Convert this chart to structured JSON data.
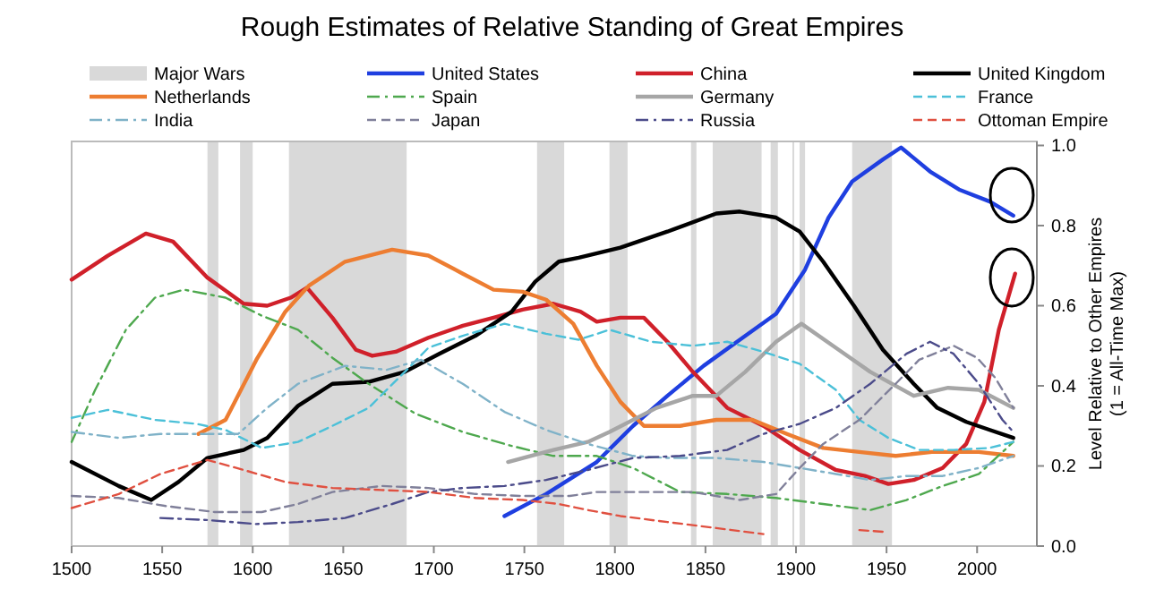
{
  "chart_data": {
    "type": "line",
    "title": "Rough Estimates of Relative Standing of Great Empires",
    "ylabel": "Level Relative to Other Empires\n(1 = All-Time Max)",
    "xlim": [
      1500,
      2033
    ],
    "ylim": [
      0,
      1.01
    ],
    "xticks": [
      1500,
      1550,
      1600,
      1650,
      1700,
      1750,
      1800,
      1850,
      1900,
      1950,
      2000
    ],
    "yticks": [
      {
        "value": 0,
        "label": "0.0"
      },
      {
        "value": 0.2,
        "label": "0.2"
      },
      {
        "value": 0.4,
        "label": "0.4"
      },
      {
        "value": 0.6,
        "label": "0.6"
      },
      {
        "value": 0.8,
        "label": "0.8"
      },
      {
        "value": 1,
        "label": "1.0"
      }
    ],
    "legend": "top",
    "grid": false,
    "marker": "none",
    "bands": [
      {
        "axis": "x",
        "from": 1620,
        "to": 1685,
        "label": "Major Wars",
        "color": "#d9d9d9"
      },
      {
        "axis": "x",
        "from": 1575,
        "to": 1581,
        "color": "#d9d9d9"
      },
      {
        "axis": "x",
        "from": 1593,
        "to": 1600,
        "color": "#d9d9d9"
      },
      {
        "axis": "x",
        "from": 1757,
        "to": 1772,
        "color": "#d9d9d9"
      },
      {
        "axis": "x",
        "from": 1797,
        "to": 1807,
        "color": "#d9d9d9"
      },
      {
        "axis": "x",
        "from": 1842,
        "to": 1845,
        "color": "#d9d9d9"
      },
      {
        "axis": "x",
        "from": 1854,
        "to": 1881,
        "color": "#d9d9d9"
      },
      {
        "axis": "x",
        "from": 1886,
        "to": 1890,
        "color": "#d9d9d9"
      },
      {
        "axis": "x",
        "from": 1898,
        "to": 1899,
        "color": "#d9d9d9"
      },
      {
        "axis": "x",
        "from": 1902,
        "to": 1905,
        "color": "#d9d9d9"
      },
      {
        "axis": "x",
        "from": 1931,
        "to": 1953,
        "color": "#d9d9d9"
      }
    ],
    "series": [
      {
        "name": "United States",
        "color": "#1f3fe0",
        "line_style": "solid",
        "x": [
          1739,
          1762,
          1790,
          1810,
          1829,
          1849,
          1869,
          1889,
          1905,
          1918,
          1931,
          1948,
          1958,
          1974,
          1990,
          2007,
          2020
        ],
        "values": [
          0.075,
          0.13,
          0.21,
          0.3,
          0.375,
          0.45,
          0.515,
          0.58,
          0.69,
          0.82,
          0.91,
          0.965,
          0.995,
          0.935,
          0.89,
          0.86,
          0.825
        ]
      },
      {
        "name": "China",
        "color": "#d0202a",
        "line_style": "solid",
        "x": [
          1500,
          1520,
          1541,
          1556,
          1575,
          1595,
          1608,
          1621,
          1630,
          1644,
          1657,
          1666,
          1679,
          1697,
          1716,
          1733,
          1749,
          1766,
          1781,
          1790,
          1803,
          1816,
          1829,
          1843,
          1862,
          1882,
          1902,
          1922,
          1938,
          1951,
          1965,
          1981,
          1994,
          2004,
          2012,
          2021
        ],
        "values": [
          0.665,
          0.725,
          0.78,
          0.76,
          0.67,
          0.605,
          0.6,
          0.62,
          0.645,
          0.57,
          0.49,
          0.475,
          0.485,
          0.52,
          0.55,
          0.57,
          0.59,
          0.605,
          0.585,
          0.56,
          0.57,
          0.57,
          0.51,
          0.435,
          0.345,
          0.3,
          0.24,
          0.19,
          0.175,
          0.155,
          0.165,
          0.195,
          0.255,
          0.36,
          0.54,
          0.68
        ]
      },
      {
        "name": "United Kingdom",
        "color": "#000000",
        "line_style": "solid",
        "x": [
          1500,
          1526,
          1544,
          1559,
          1575,
          1595,
          1608,
          1625,
          1644,
          1664,
          1684,
          1703,
          1723,
          1743,
          1756,
          1769,
          1780,
          1803,
          1829,
          1856,
          1869,
          1889,
          1902,
          1915,
          1932,
          1948,
          1965,
          1978,
          1994,
          2007,
          2020
        ],
        "values": [
          0.21,
          0.15,
          0.115,
          0.16,
          0.22,
          0.24,
          0.27,
          0.35,
          0.405,
          0.41,
          0.435,
          0.48,
          0.525,
          0.585,
          0.66,
          0.71,
          0.72,
          0.745,
          0.785,
          0.83,
          0.835,
          0.82,
          0.785,
          0.71,
          0.6,
          0.49,
          0.405,
          0.345,
          0.31,
          0.29,
          0.27
        ]
      },
      {
        "name": "Netherlands",
        "color": "#ed7d31",
        "line_style": "solid",
        "x": [
          1570,
          1585,
          1602,
          1618,
          1631,
          1651,
          1677,
          1697,
          1716,
          1733,
          1749,
          1762,
          1777,
          1790,
          1803,
          1816,
          1836,
          1856,
          1876,
          1895,
          1915,
          1935,
          1955,
          1975,
          2001,
          2020
        ],
        "values": [
          0.28,
          0.315,
          0.465,
          0.585,
          0.65,
          0.71,
          0.74,
          0.725,
          0.68,
          0.64,
          0.635,
          0.615,
          0.555,
          0.45,
          0.36,
          0.3,
          0.3,
          0.315,
          0.315,
          0.28,
          0.245,
          0.235,
          0.225,
          0.235,
          0.235,
          0.225
        ]
      },
      {
        "name": "Spain",
        "color": "#4ea84e",
        "line_style": "dashdot",
        "x": [
          1500,
          1513,
          1530,
          1546,
          1562,
          1585,
          1605,
          1625,
          1644,
          1664,
          1690,
          1716,
          1743,
          1766,
          1790,
          1810,
          1836,
          1862,
          1889,
          1915,
          1941,
          1961,
          1981,
          2001,
          2020
        ],
        "values": [
          0.26,
          0.39,
          0.54,
          0.62,
          0.64,
          0.62,
          0.575,
          0.54,
          0.47,
          0.405,
          0.33,
          0.285,
          0.25,
          0.225,
          0.225,
          0.195,
          0.135,
          0.13,
          0.12,
          0.105,
          0.09,
          0.115,
          0.15,
          0.18,
          0.26
        ]
      },
      {
        "name": "Germany",
        "color": "#a6a6a6",
        "line_style": "solid",
        "x": [
          1741,
          1766,
          1785,
          1797,
          1823,
          1843,
          1856,
          1872,
          1889,
          1903,
          1922,
          1941,
          1965,
          1984,
          2001,
          2020
        ],
        "values": [
          0.21,
          0.24,
          0.26,
          0.285,
          0.345,
          0.375,
          0.375,
          0.435,
          0.51,
          0.555,
          0.495,
          0.435,
          0.375,
          0.395,
          0.39,
          0.345
        ]
      },
      {
        "name": "France",
        "color": "#4bc0d8",
        "line_style": "dashed",
        "x": [
          1500,
          1520,
          1546,
          1569,
          1585,
          1605,
          1625,
          1644,
          1664,
          1684,
          1697,
          1716,
          1739,
          1762,
          1780,
          1797,
          1820,
          1843,
          1862,
          1882,
          1902,
          1922,
          1935,
          1951,
          1968,
          1987,
          2007,
          2020
        ],
        "values": [
          0.32,
          0.34,
          0.315,
          0.305,
          0.29,
          0.245,
          0.26,
          0.3,
          0.345,
          0.435,
          0.495,
          0.525,
          0.555,
          0.53,
          0.515,
          0.54,
          0.51,
          0.5,
          0.51,
          0.485,
          0.455,
          0.39,
          0.315,
          0.27,
          0.24,
          0.24,
          0.245,
          0.26
        ]
      },
      {
        "name": "India",
        "color": "#7fb2c8",
        "line_style": "dashdot",
        "x": [
          1500,
          1526,
          1549,
          1569,
          1592,
          1608,
          1625,
          1651,
          1674,
          1693,
          1716,
          1739,
          1762,
          1785,
          1810,
          1829,
          1856,
          1882,
          1902,
          1922,
          1941,
          1961,
          1981,
          2001,
          2020
        ],
        "values": [
          0.285,
          0.27,
          0.28,
          0.28,
          0.28,
          0.345,
          0.405,
          0.45,
          0.44,
          0.465,
          0.405,
          0.335,
          0.29,
          0.255,
          0.225,
          0.22,
          0.22,
          0.21,
          0.195,
          0.18,
          0.165,
          0.175,
          0.175,
          0.195,
          0.225
        ]
      },
      {
        "name": "Japan",
        "color": "#80809a",
        "line_style": "dashed",
        "x": [
          1500,
          1526,
          1552,
          1579,
          1605,
          1625,
          1644,
          1671,
          1697,
          1723,
          1749,
          1775,
          1790,
          1816,
          1843,
          1869,
          1889,
          1902,
          1915,
          1935,
          1955,
          1968,
          1987,
          2000,
          2010,
          2020
        ],
        "values": [
          0.125,
          0.12,
          0.1,
          0.085,
          0.085,
          0.105,
          0.135,
          0.15,
          0.145,
          0.13,
          0.125,
          0.125,
          0.135,
          0.135,
          0.135,
          0.115,
          0.13,
          0.195,
          0.255,
          0.315,
          0.405,
          0.465,
          0.5,
          0.47,
          0.42,
          0.345
        ]
      },
      {
        "name": "Russia",
        "color": "#4b4b8a",
        "line_style": "dashdot",
        "x": [
          1549,
          1575,
          1602,
          1625,
          1651,
          1677,
          1697,
          1716,
          1739,
          1762,
          1785,
          1810,
          1836,
          1862,
          1882,
          1902,
          1922,
          1941,
          1961,
          1974,
          1987,
          2001,
          2014,
          2020
        ],
        "values": [
          0.07,
          0.065,
          0.055,
          0.06,
          0.07,
          0.105,
          0.135,
          0.145,
          0.15,
          0.165,
          0.19,
          0.22,
          0.225,
          0.24,
          0.28,
          0.305,
          0.345,
          0.405,
          0.48,
          0.51,
          0.48,
          0.405,
          0.315,
          0.285
        ]
      },
      {
        "name": "Ottoman Empire",
        "color": "#e05040",
        "line_style": "dashed",
        "x": [
          1500,
          1526,
          1549,
          1575,
          1595,
          1618,
          1644,
          1671,
          1697,
          1723,
          1749,
          1769,
          1785,
          1803,
          1829,
          1856,
          1882,
          1922,
          1935,
          1950
        ],
        "values": [
          0.095,
          0.13,
          0.18,
          0.215,
          0.19,
          0.16,
          0.145,
          0.14,
          0.135,
          0.12,
          0.115,
          0.105,
          0.09,
          0.075,
          0.06,
          0.045,
          0.03,
          null,
          0.04,
          0.035
        ]
      }
    ]
  }
}
